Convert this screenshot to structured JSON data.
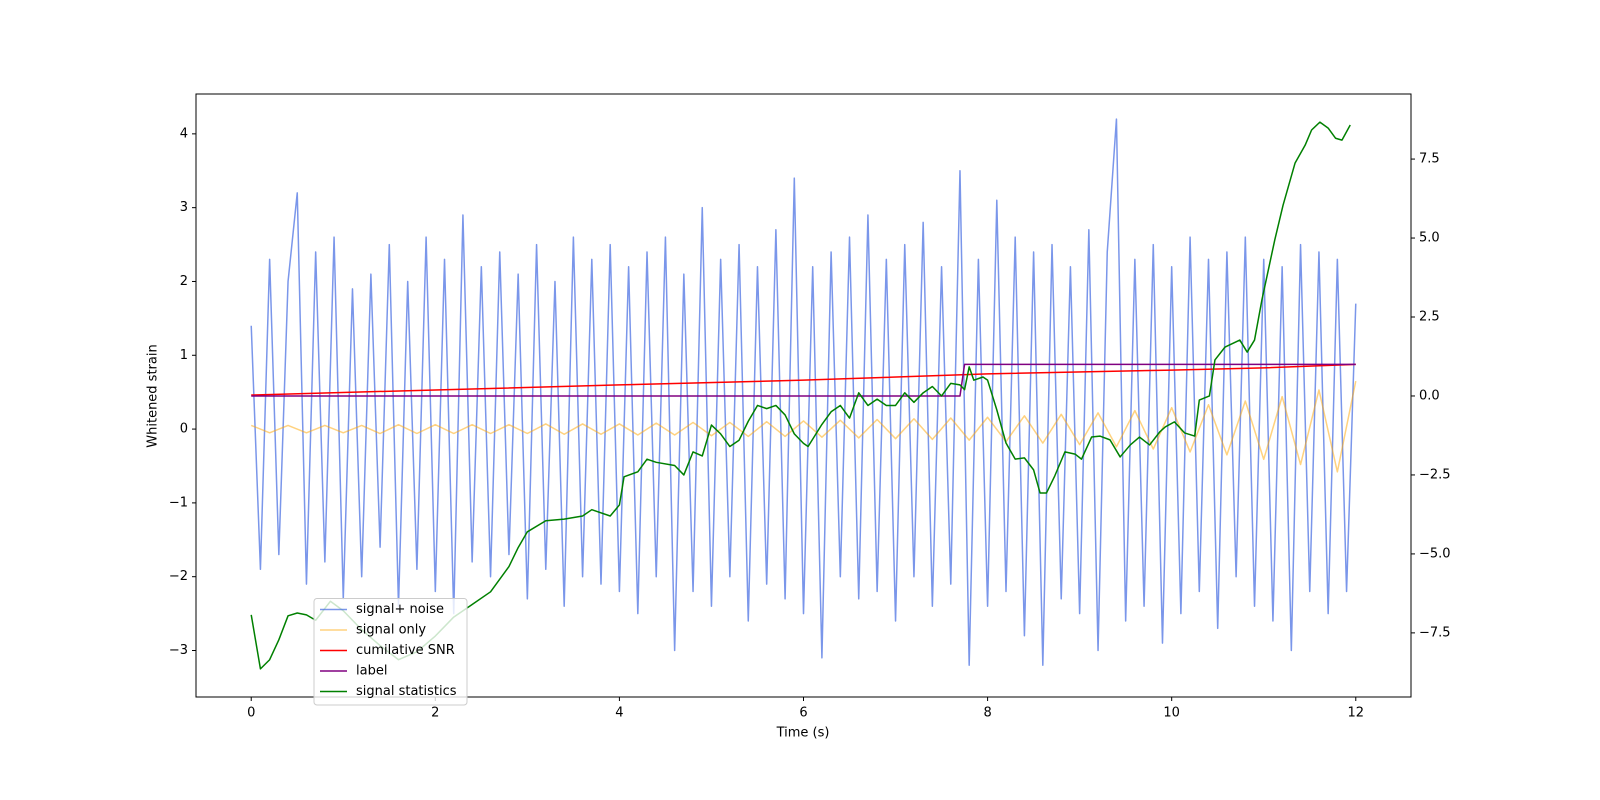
{
  "chart_data": {
    "type": "line",
    "xlabel": "Time (s)",
    "ylabel": "Whitened strain",
    "xlim": [
      -0.6,
      12.6
    ],
    "xticks": [
      0,
      2,
      4,
      6,
      8,
      10,
      12
    ],
    "ylim": [
      -3.63,
      4.54
    ],
    "yticks": [
      {
        "value": -3,
        "label": "−3"
      },
      {
        "value": -2,
        "label": "−2"
      },
      {
        "value": -1,
        "label": "−1"
      },
      0,
      1,
      2,
      3,
      4
    ],
    "y2lim": [
      -9.53,
      9.56
    ],
    "y2ticks": [
      {
        "value": -7.5,
        "label": "−7.5"
      },
      {
        "value": -5,
        "label": "−5.0"
      },
      {
        "value": -2.5,
        "label": "−2.5"
      },
      {
        "value": 0,
        "label": "0.0"
      },
      {
        "value": 2.5,
        "label": "2.5"
      },
      {
        "value": 5,
        "label": "5.0"
      },
      {
        "value": 7.5,
        "label": "7.5"
      }
    ],
    "legend": "lower left",
    "series": [
      {
        "name": "signal+ noise",
        "color": "#4169e1",
        "opacity": 0.7,
        "x": [
          0,
          0.1,
          0.2,
          0.3,
          0.4,
          0.5,
          0.6,
          0.7,
          0.8,
          0.9,
          1,
          1.1,
          1.2,
          1.3,
          1.4,
          1.5,
          1.6,
          1.7,
          1.8,
          1.9,
          2,
          2.1,
          2.2,
          2.3,
          2.4,
          2.5,
          2.6,
          2.7,
          2.8,
          2.9,
          3,
          3.1,
          3.2,
          3.3,
          3.4,
          3.5,
          3.6,
          3.7,
          3.8,
          3.9,
          4,
          4.1,
          4.2,
          4.3,
          4.4,
          4.5,
          4.6,
          4.7,
          4.8,
          4.9,
          5,
          5.1,
          5.2,
          5.3,
          5.4,
          5.5,
          5.6,
          5.7,
          5.8,
          5.9,
          6,
          6.1,
          6.2,
          6.3,
          6.4,
          6.5,
          6.6,
          6.7,
          6.8,
          6.9,
          7,
          7.1,
          7.2,
          7.3,
          7.4,
          7.5,
          7.6,
          7.7,
          7.8,
          7.9,
          8,
          8.1,
          8.2,
          8.3,
          8.4,
          8.5,
          8.6,
          8.7,
          8.8,
          8.9,
          9,
          9.1,
          9.2,
          9.3,
          9.4,
          9.5,
          9.6,
          9.7,
          9.8,
          9.9,
          10,
          10.1,
          10.2,
          10.3,
          10.4,
          10.5,
          10.6,
          10.7,
          10.8,
          10.9,
          11,
          11.1,
          11.2,
          11.3,
          11.4,
          11.5,
          11.6,
          11.7,
          11.8,
          11.9,
          12
        ],
        "values": [
          1.4,
          -1.9,
          2.3,
          -1.7,
          2.0,
          3.2,
          -2.1,
          2.4,
          -1.8,
          2.6,
          -2.3,
          1.9,
          -2.0,
          2.1,
          -1.6,
          2.5,
          -2.4,
          2.0,
          -1.9,
          2.6,
          -2.2,
          2.3,
          -2.5,
          2.9,
          -1.8,
          2.2,
          -2.0,
          2.4,
          -1.7,
          2.1,
          -2.3,
          2.5,
          -1.9,
          2.0,
          -2.4,
          2.6,
          -2.0,
          2.3,
          -2.1,
          2.5,
          -2.2,
          2.2,
          -2.5,
          2.4,
          -2.0,
          2.6,
          -3.0,
          2.1,
          -2.2,
          3.0,
          -2.4,
          2.3,
          -2.0,
          2.5,
          -2.6,
          2.2,
          -2.1,
          2.7,
          -2.3,
          3.4,
          -2.5,
          2.2,
          -3.1,
          2.4,
          -2.0,
          2.6,
          -2.3,
          2.9,
          -2.2,
          2.3,
          -2.6,
          2.5,
          -2.0,
          2.8,
          -2.4,
          2.2,
          -2.1,
          3.5,
          -3.2,
          2.3,
          -2.4,
          3.1,
          -2.2,
          2.6,
          -2.8,
          2.4,
          -3.2,
          2.5,
          -2.3,
          2.2,
          -2.5,
          2.7,
          -3.0,
          2.4,
          4.2,
          -2.6,
          2.3,
          -2.4,
          2.5,
          -2.9,
          2.2,
          -2.5,
          2.6,
          -2.2,
          2.3,
          -2.7,
          2.4,
          -2.0,
          2.6,
          -2.4,
          2.3,
          -2.6,
          2.2,
          -3.0,
          2.5,
          -2.2,
          2.4,
          -2.5,
          2.3,
          -2.2,
          1.7
        ]
      },
      {
        "name": "signal only",
        "color": "orange",
        "opacity": 0.5,
        "x": [
          0,
          0.2,
          0.4,
          0.6,
          0.8,
          1,
          1.2,
          1.4,
          1.6,
          1.8,
          2,
          2.2,
          2.4,
          2.6,
          2.8,
          3,
          3.2,
          3.4,
          3.6,
          3.8,
          4,
          4.2,
          4.4,
          4.6,
          4.8,
          5,
          5.2,
          5.4,
          5.6,
          5.8,
          6,
          6.2,
          6.4,
          6.6,
          6.8,
          7,
          7.2,
          7.4,
          7.6,
          7.8,
          8,
          8.2,
          8.4,
          8.6,
          8.8,
          9,
          9.2,
          9.4,
          9.6,
          9.8,
          10,
          10.2,
          10.4,
          10.6,
          10.8,
          11,
          11.2,
          11.4,
          11.6,
          11.8,
          12
        ],
        "values": [
          0.05,
          -0.05,
          0.05,
          -0.05,
          0.05,
          -0.05,
          0.05,
          -0.06,
          0.06,
          -0.06,
          0.06,
          -0.06,
          0.06,
          -0.06,
          0.06,
          -0.06,
          0.07,
          -0.07,
          0.07,
          -0.07,
          0.07,
          -0.08,
          0.08,
          -0.08,
          0.09,
          -0.09,
          0.09,
          -0.1,
          0.1,
          -0.1,
          0.11,
          -0.11,
          0.12,
          -0.12,
          0.13,
          -0.13,
          0.14,
          -0.14,
          0.15,
          -0.15,
          0.16,
          -0.17,
          0.18,
          -0.19,
          0.2,
          -0.21,
          0.22,
          -0.24,
          0.25,
          -0.27,
          0.29,
          -0.31,
          0.33,
          -0.35,
          0.38,
          -0.41,
          0.44,
          -0.48,
          0.53,
          -0.58,
          0.65
        ]
      },
      {
        "name": "cumilative SNR",
        "color": "red",
        "axis": "y2",
        "x": [
          0,
          2,
          4,
          6,
          8,
          10,
          11,
          12
        ],
        "values": [
          0.03,
          0.19,
          0.35,
          0.5,
          0.7,
          0.82,
          0.89,
          1.0
        ]
      },
      {
        "name": "label",
        "color": "purple",
        "axis": "y2",
        "x": [
          0,
          7.7,
          7.75,
          12
        ],
        "values": [
          0,
          0,
          1,
          1
        ]
      },
      {
        "name": "signal statistics",
        "color": "green",
        "axis": "y2",
        "x": [
          0,
          0.1,
          0.2,
          0.3,
          0.4,
          0.5,
          0.6,
          0.7,
          0.86,
          1.0,
          1.2,
          1.4,
          1.6,
          1.8,
          2.0,
          2.2,
          2.4,
          2.6,
          2.8,
          2.9,
          3.0,
          3.2,
          3.4,
          3.6,
          3.7,
          3.9,
          4.0,
          4.05,
          4.2,
          4.3,
          4.4,
          4.6,
          4.7,
          4.8,
          4.9,
          5.0,
          5.1,
          5.2,
          5.3,
          5.4,
          5.5,
          5.6,
          5.7,
          5.8,
          5.9,
          6.0,
          6.05,
          6.2,
          6.3,
          6.4,
          6.5,
          6.6,
          6.7,
          6.8,
          6.9,
          7.0,
          7.1,
          7.2,
          7.3,
          7.4,
          7.5,
          7.6,
          7.7,
          7.75,
          7.8,
          7.85,
          7.95,
          8.0,
          8.1,
          8.2,
          8.3,
          8.4,
          8.5,
          8.57,
          8.64,
          8.73,
          8.84,
          8.95,
          9.02,
          9.13,
          9.22,
          9.33,
          9.44,
          9.55,
          9.65,
          9.76,
          9.87,
          9.93,
          10.03,
          10.14,
          10.25,
          10.3,
          10.41,
          10.47,
          10.58,
          10.74,
          10.82,
          10.9,
          10.98,
          11.12,
          11.21,
          11.34,
          11.45,
          11.52,
          11.61,
          11.7,
          11.78,
          11.85,
          11.94
        ],
        "values": [
          -6.93,
          -8.64,
          -8.35,
          -7.72,
          -6.96,
          -6.87,
          -6.93,
          -7.1,
          -6.5,
          -6.8,
          -7.4,
          -7.9,
          -8.35,
          -8.1,
          -7.6,
          -7.0,
          -6.6,
          -6.2,
          -5.4,
          -4.8,
          -4.3,
          -3.95,
          -3.9,
          -3.8,
          -3.6,
          -3.8,
          -3.45,
          -2.56,
          -2.4,
          -2.0,
          -2.1,
          -2.2,
          -2.5,
          -1.77,
          -1.9,
          -0.92,
          -1.2,
          -1.6,
          -1.4,
          -0.8,
          -0.3,
          -0.4,
          -0.3,
          -0.6,
          -1.2,
          -1.5,
          -1.6,
          -0.9,
          -0.5,
          -0.3,
          -0.7,
          0.1,
          -0.3,
          -0.1,
          -0.3,
          -0.3,
          0.1,
          -0.2,
          0.1,
          0.3,
          0.0,
          0.4,
          0.35,
          0.2,
          0.92,
          0.5,
          0.6,
          0.5,
          -0.44,
          -1.49,
          -2.0,
          -1.96,
          -2.34,
          -3.07,
          -3.07,
          -2.53,
          -1.77,
          -1.84,
          -2.0,
          -1.3,
          -1.27,
          -1.39,
          -1.93,
          -1.55,
          -1.3,
          -1.55,
          -1.14,
          -0.98,
          -0.82,
          -1.17,
          -1.27,
          -0.13,
          0,
          1.14,
          1.55,
          1.77,
          1.39,
          1.77,
          3.04,
          4.94,
          6.04,
          7.37,
          7.94,
          8.42,
          8.67,
          8.48,
          8.16,
          8.1,
          8.58
        ]
      }
    ]
  }
}
